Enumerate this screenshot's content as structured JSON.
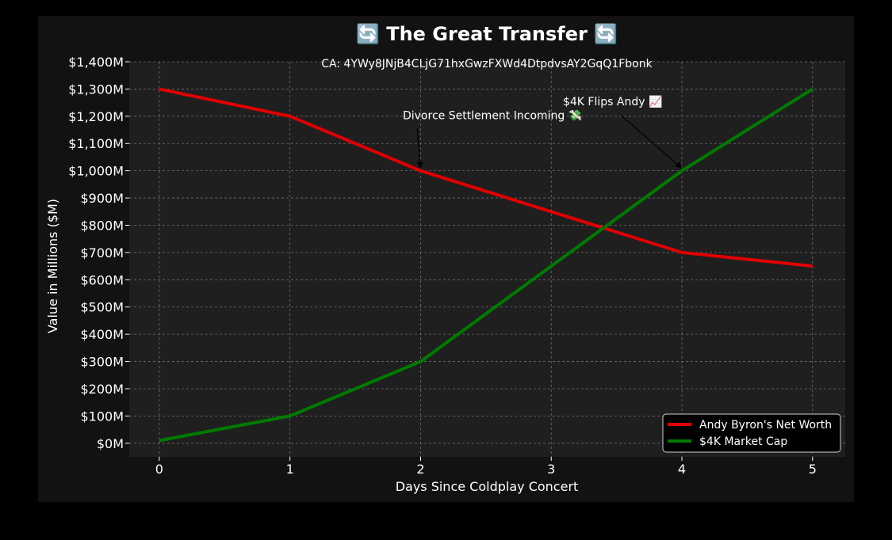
{
  "chart_data": {
    "type": "line",
    "title": "🔄 The Great Transfer 🔄",
    "subtitle": "CA: 4YWy8JNjB4CLjG71hxGwzFXWd4DtpdvsAY2GqQ1Fbonk",
    "xlabel": "Days Since Coldplay Concert",
    "ylabel": "Value in Millions ($M)",
    "x": [
      0,
      1,
      2,
      3,
      4,
      5
    ],
    "xlim": [
      -0.23,
      5.25
    ],
    "ylim": [
      -50,
      1400
    ],
    "xticks": [
      0,
      1,
      2,
      3,
      4,
      5
    ],
    "yticks": [
      0,
      100,
      200,
      300,
      400,
      500,
      600,
      700,
      800,
      900,
      1000,
      1100,
      1200,
      1300,
      1400
    ],
    "ytick_labels": [
      "$0M",
      "$100M",
      "$200M",
      "$300M",
      "$400M",
      "$500M",
      "$600M",
      "$700M",
      "$800M",
      "$900M",
      "$1,000M",
      "$1,100M",
      "$1,200M",
      "$1,300M",
      "$1,400M"
    ],
    "grid": true,
    "legend_position": "bottom-right",
    "series": [
      {
        "name": "Andy Byron's Net Worth",
        "color": "#e00000",
        "values": [
          1300,
          1200,
          1000,
          850,
          700,
          650
        ]
      },
      {
        "name": "$4K Market Cap",
        "color": "#007a00",
        "values": [
          10,
          100,
          300,
          650,
          1000,
          1300
        ]
      }
    ],
    "annotations": [
      {
        "text": "Divorce Settlement Incoming 💸",
        "point": [
          2,
          1000
        ],
        "text_at": [
          2.55,
          1190
        ]
      },
      {
        "text": "$4K Flips Andy 📈",
        "point": [
          4,
          1000
        ],
        "text_at": [
          3.47,
          1240
        ]
      }
    ]
  },
  "colors": {
    "page_background": "#000000",
    "figure_background": "#121212",
    "plot_background": "#1f1f1f",
    "grid": "#6e6e6e",
    "text": "#ffffff"
  }
}
